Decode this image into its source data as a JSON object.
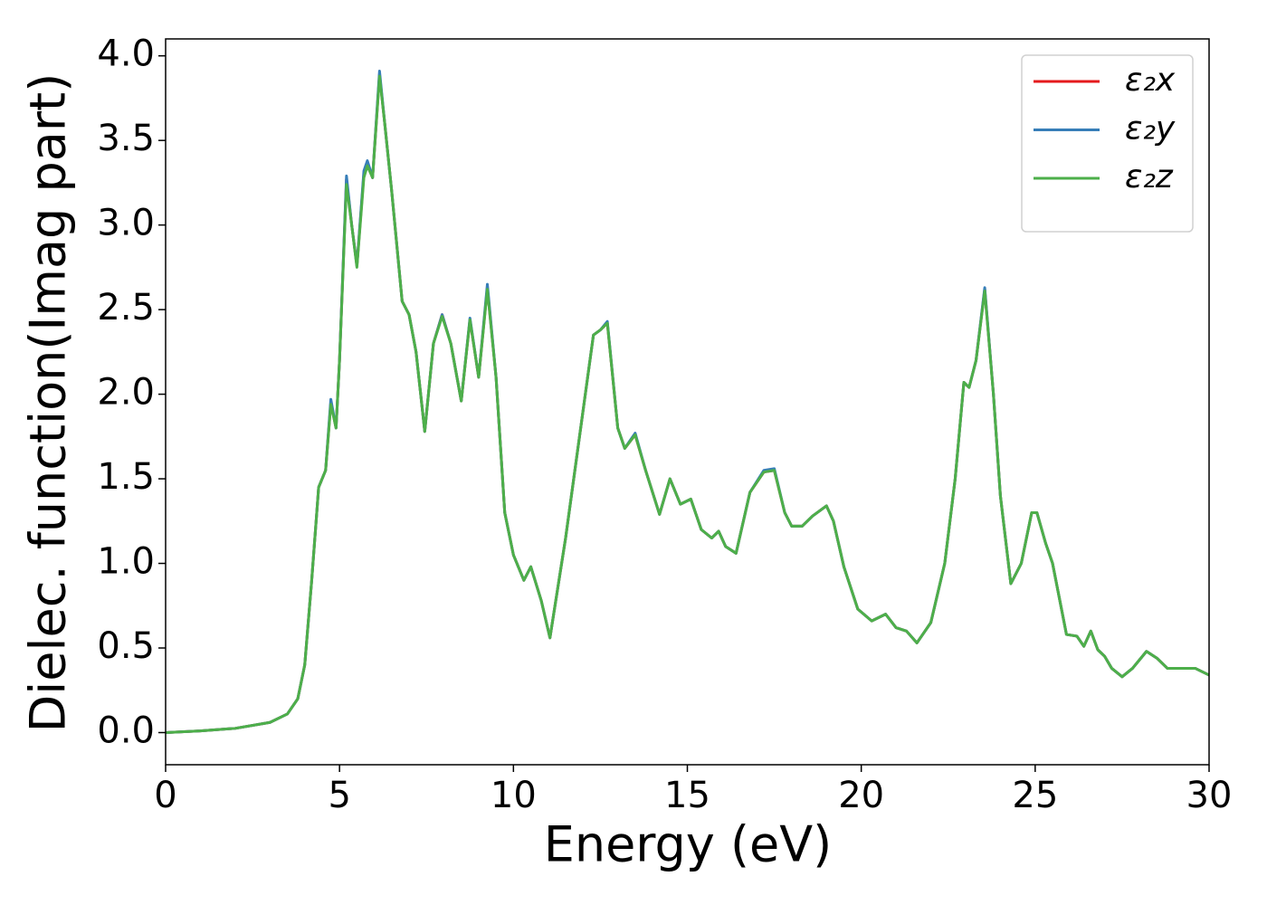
{
  "chart_data": {
    "type": "line",
    "xlabel": "Energy (eV)",
    "ylabel": "Dielec. function(Imag part)",
    "x": [
      0,
      1,
      2,
      3,
      3.5,
      3.8,
      4.0,
      4.2,
      4.4,
      4.6,
      4.75,
      4.9,
      5.0,
      5.2,
      5.35,
      5.5,
      5.7,
      5.8,
      5.95,
      6.15,
      6.3,
      6.5,
      6.8,
      7.0,
      7.2,
      7.45,
      7.7,
      7.95,
      8.2,
      8.5,
      8.75,
      9.0,
      9.25,
      9.5,
      9.75,
      10.0,
      10.3,
      10.5,
      10.8,
      11.05,
      11.5,
      12.0,
      12.3,
      12.5,
      12.7,
      13.0,
      13.2,
      13.5,
      13.8,
      14.2,
      14.5,
      14.8,
      15.1,
      15.4,
      15.7,
      15.9,
      16.1,
      16.4,
      16.8,
      17.2,
      17.5,
      17.8,
      18.0,
      18.3,
      18.6,
      19.0,
      19.2,
      19.5,
      19.9,
      20.3,
      20.7,
      21.0,
      21.3,
      21.6,
      22.0,
      22.4,
      22.7,
      22.95,
      23.1,
      23.3,
      23.55,
      23.8,
      24.0,
      24.3,
      24.6,
      24.9,
      25.05,
      25.3,
      25.5,
      25.9,
      26.2,
      26.4,
      26.6,
      26.8,
      27.0,
      27.2,
      27.5,
      27.8,
      28.2,
      28.5,
      28.8,
      29.2,
      29.6,
      30
    ],
    "series": [
      {
        "name": "ε₂x",
        "color": "#e41a1c",
        "values": [
          0.0,
          0.01,
          0.025,
          0.06,
          0.11,
          0.2,
          0.4,
          0.9,
          1.45,
          1.55,
          1.95,
          1.8,
          2.2,
          3.27,
          3.0,
          2.76,
          3.3,
          3.36,
          3.28,
          3.89,
          3.6,
          3.2,
          2.55,
          2.47,
          2.25,
          1.78,
          2.3,
          2.47,
          2.3,
          1.96,
          2.44,
          2.1,
          2.63,
          2.1,
          1.3,
          1.05,
          0.9,
          0.98,
          0.78,
          0.56,
          1.15,
          1.9,
          2.35,
          2.38,
          2.42,
          1.8,
          1.68,
          1.76,
          1.55,
          1.29,
          1.5,
          1.35,
          1.38,
          1.2,
          1.15,
          1.19,
          1.1,
          1.06,
          1.42,
          1.54,
          1.55,
          1.3,
          1.22,
          1.22,
          1.28,
          1.34,
          1.25,
          0.98,
          0.73,
          0.66,
          0.7,
          0.62,
          0.6,
          0.53,
          0.65,
          1.0,
          1.5,
          2.07,
          2.04,
          2.2,
          2.62,
          2.0,
          1.4,
          0.88,
          1.0,
          1.3,
          1.3,
          1.12,
          1.0,
          0.58,
          0.57,
          0.51,
          0.6,
          0.49,
          0.45,
          0.38,
          0.33,
          0.38,
          0.48,
          0.44,
          0.38,
          0.38,
          0.38,
          0.34
        ]
      },
      {
        "name": "ε₂y",
        "color": "#377eb8",
        "values": [
          0.0,
          0.01,
          0.025,
          0.06,
          0.11,
          0.2,
          0.4,
          0.9,
          1.45,
          1.55,
          1.97,
          1.8,
          2.2,
          3.29,
          3.0,
          2.76,
          3.32,
          3.38,
          3.28,
          3.91,
          3.6,
          3.2,
          2.55,
          2.47,
          2.25,
          1.78,
          2.3,
          2.47,
          2.3,
          1.96,
          2.45,
          2.1,
          2.65,
          2.1,
          1.3,
          1.05,
          0.9,
          0.98,
          0.78,
          0.56,
          1.15,
          1.9,
          2.35,
          2.38,
          2.43,
          1.8,
          1.68,
          1.77,
          1.55,
          1.29,
          1.5,
          1.35,
          1.38,
          1.2,
          1.15,
          1.19,
          1.1,
          1.06,
          1.42,
          1.55,
          1.56,
          1.3,
          1.22,
          1.22,
          1.28,
          1.34,
          1.25,
          0.98,
          0.73,
          0.66,
          0.7,
          0.62,
          0.6,
          0.53,
          0.65,
          1.0,
          1.5,
          2.07,
          2.04,
          2.2,
          2.63,
          2.0,
          1.4,
          0.88,
          1.0,
          1.3,
          1.3,
          1.12,
          1.0,
          0.58,
          0.57,
          0.51,
          0.6,
          0.49,
          0.45,
          0.38,
          0.33,
          0.38,
          0.48,
          0.44,
          0.38,
          0.38,
          0.38,
          0.34
        ]
      },
      {
        "name": "ε₂z",
        "color": "#4daf4a",
        "values": [
          0.0,
          0.01,
          0.025,
          0.06,
          0.11,
          0.2,
          0.4,
          0.9,
          1.45,
          1.55,
          1.94,
          1.8,
          2.2,
          3.24,
          3.0,
          2.75,
          3.28,
          3.35,
          3.28,
          3.88,
          3.6,
          3.2,
          2.55,
          2.47,
          2.25,
          1.78,
          2.3,
          2.46,
          2.3,
          1.96,
          2.44,
          2.1,
          2.62,
          2.1,
          1.3,
          1.05,
          0.9,
          0.98,
          0.78,
          0.56,
          1.15,
          1.9,
          2.35,
          2.38,
          2.42,
          1.8,
          1.68,
          1.76,
          1.55,
          1.29,
          1.5,
          1.35,
          1.38,
          1.2,
          1.15,
          1.19,
          1.1,
          1.06,
          1.42,
          1.54,
          1.55,
          1.3,
          1.22,
          1.22,
          1.28,
          1.34,
          1.25,
          0.98,
          0.73,
          0.66,
          0.7,
          0.62,
          0.6,
          0.53,
          0.65,
          1.0,
          1.5,
          2.07,
          2.04,
          2.2,
          2.61,
          2.0,
          1.4,
          0.88,
          1.0,
          1.3,
          1.3,
          1.12,
          1.0,
          0.58,
          0.57,
          0.51,
          0.6,
          0.49,
          0.45,
          0.38,
          0.33,
          0.38,
          0.48,
          0.44,
          0.38,
          0.38,
          0.38,
          0.34
        ]
      }
    ],
    "xlim": [
      0,
      30
    ],
    "xticks": [
      0,
      5,
      10,
      15,
      20,
      25,
      30
    ],
    "ylim": [
      -0.19,
      4.1
    ],
    "yticks": [
      {
        "value": 0,
        "label": "0.0"
      },
      0.5,
      {
        "value": 1,
        "label": "1.0"
      },
      1.5,
      {
        "value": 2,
        "label": "2.0"
      },
      2.5,
      {
        "value": 3,
        "label": "3.0"
      },
      3.5,
      {
        "value": 4,
        "label": "4.0"
      }
    ],
    "grid": false,
    "legend": "upper right"
  }
}
